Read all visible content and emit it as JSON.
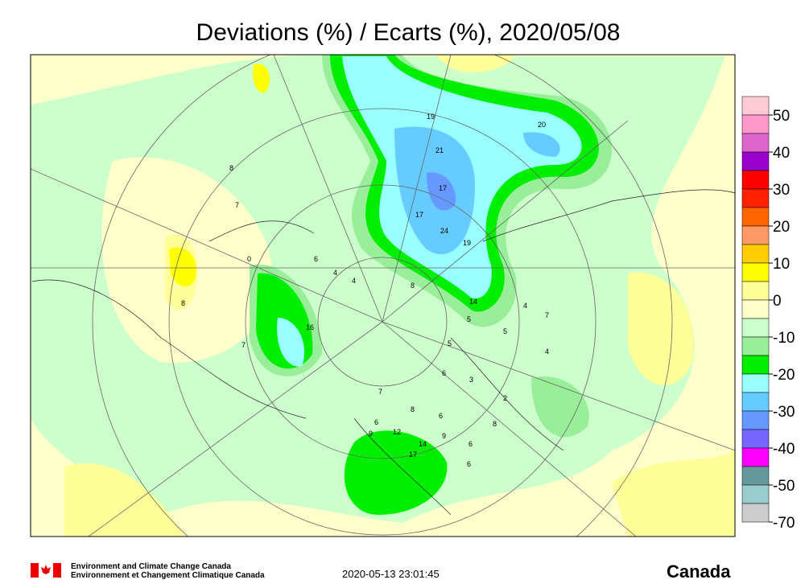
{
  "title": "Deviations (%) / Ecarts (%), 2020/05/08",
  "legend": {
    "ticks": [
      50,
      40,
      30,
      20,
      10,
      0,
      -10,
      -20,
      -30,
      -40,
      -50,
      -70
    ],
    "colors": [
      "#ffccd5",
      "#ff99cc",
      "#dd66cc",
      "#9900cc",
      "#ff0000",
      "#ff2200",
      "#ff6600",
      "#ff9966",
      "#ffcc00",
      "#ffff00",
      "#ffff99",
      "#ffffcc",
      "#ccffcc",
      "#99ee99",
      "#00ee00",
      "#99ffff",
      "#66ccff",
      "#6699ff",
      "#7766ff",
      "#ff00ff",
      "#669999",
      "#99cccc",
      "#cccccc"
    ]
  },
  "map_labels": [
    19,
    21,
    17,
    17,
    24,
    19,
    20,
    8,
    7,
    0,
    6,
    4,
    4,
    8,
    8,
    16,
    7,
    14,
    4,
    7,
    5,
    5,
    5,
    4,
    6,
    3,
    2,
    7,
    8,
    6,
    6,
    9,
    12,
    14,
    17,
    9,
    6,
    8,
    6
  ],
  "footer": {
    "agency_en": "Environment and Climate Change Canada",
    "agency_fr": "Environnement et Changement Climatique Canada",
    "timestamp": "2020-05-13 23:01:45",
    "wordmark": "Canada"
  }
}
